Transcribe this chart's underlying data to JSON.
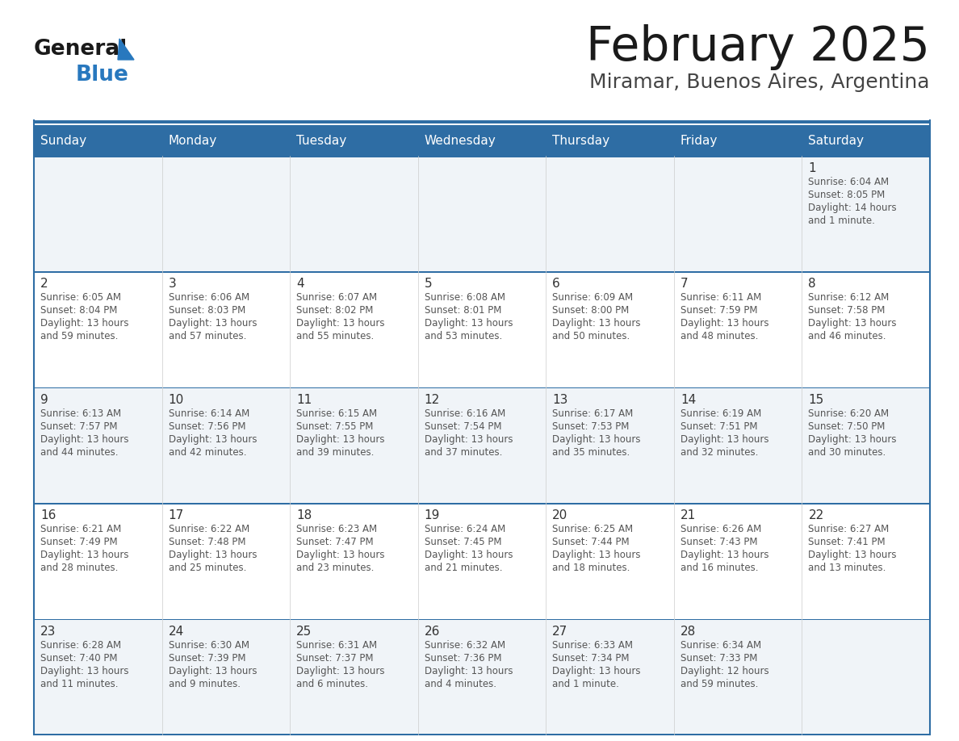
{
  "title": "February 2025",
  "subtitle": "Miramar, Buenos Aires, Argentina",
  "days_of_week": [
    "Sunday",
    "Monday",
    "Tuesday",
    "Wednesday",
    "Thursday",
    "Friday",
    "Saturday"
  ],
  "header_bg": "#2E6DA4",
  "header_text": "#FFFFFF",
  "cell_bg_odd": "#F0F4F8",
  "cell_bg_even": "#FFFFFF",
  "day_num_color": "#333333",
  "text_color": "#555555",
  "border_color": "#2E6DA4",
  "title_color": "#1a1a1a",
  "subtitle_color": "#444444",
  "logo_text_color": "#1a1a1a",
  "logo_blue_color": "#2878BE",
  "calendar": [
    [
      null,
      null,
      null,
      null,
      null,
      null,
      {
        "day": 1,
        "sunrise": "6:04 AM",
        "sunset": "8:05 PM",
        "daylight": "14 hours and 1 minute."
      }
    ],
    [
      {
        "day": 2,
        "sunrise": "6:05 AM",
        "sunset": "8:04 PM",
        "daylight": "13 hours and 59 minutes."
      },
      {
        "day": 3,
        "sunrise": "6:06 AM",
        "sunset": "8:03 PM",
        "daylight": "13 hours and 57 minutes."
      },
      {
        "day": 4,
        "sunrise": "6:07 AM",
        "sunset": "8:02 PM",
        "daylight": "13 hours and 55 minutes."
      },
      {
        "day": 5,
        "sunrise": "6:08 AM",
        "sunset": "8:01 PM",
        "daylight": "13 hours and 53 minutes."
      },
      {
        "day": 6,
        "sunrise": "6:09 AM",
        "sunset": "8:00 PM",
        "daylight": "13 hours and 50 minutes."
      },
      {
        "day": 7,
        "sunrise": "6:11 AM",
        "sunset": "7:59 PM",
        "daylight": "13 hours and 48 minutes."
      },
      {
        "day": 8,
        "sunrise": "6:12 AM",
        "sunset": "7:58 PM",
        "daylight": "13 hours and 46 minutes."
      }
    ],
    [
      {
        "day": 9,
        "sunrise": "6:13 AM",
        "sunset": "7:57 PM",
        "daylight": "13 hours and 44 minutes."
      },
      {
        "day": 10,
        "sunrise": "6:14 AM",
        "sunset": "7:56 PM",
        "daylight": "13 hours and 42 minutes."
      },
      {
        "day": 11,
        "sunrise": "6:15 AM",
        "sunset": "7:55 PM",
        "daylight": "13 hours and 39 minutes."
      },
      {
        "day": 12,
        "sunrise": "6:16 AM",
        "sunset": "7:54 PM",
        "daylight": "13 hours and 37 minutes."
      },
      {
        "day": 13,
        "sunrise": "6:17 AM",
        "sunset": "7:53 PM",
        "daylight": "13 hours and 35 minutes."
      },
      {
        "day": 14,
        "sunrise": "6:19 AM",
        "sunset": "7:51 PM",
        "daylight": "13 hours and 32 minutes."
      },
      {
        "day": 15,
        "sunrise": "6:20 AM",
        "sunset": "7:50 PM",
        "daylight": "13 hours and 30 minutes."
      }
    ],
    [
      {
        "day": 16,
        "sunrise": "6:21 AM",
        "sunset": "7:49 PM",
        "daylight": "13 hours and 28 minutes."
      },
      {
        "day": 17,
        "sunrise": "6:22 AM",
        "sunset": "7:48 PM",
        "daylight": "13 hours and 25 minutes."
      },
      {
        "day": 18,
        "sunrise": "6:23 AM",
        "sunset": "7:47 PM",
        "daylight": "13 hours and 23 minutes."
      },
      {
        "day": 19,
        "sunrise": "6:24 AM",
        "sunset": "7:45 PM",
        "daylight": "13 hours and 21 minutes."
      },
      {
        "day": 20,
        "sunrise": "6:25 AM",
        "sunset": "7:44 PM",
        "daylight": "13 hours and 18 minutes."
      },
      {
        "day": 21,
        "sunrise": "6:26 AM",
        "sunset": "7:43 PM",
        "daylight": "13 hours and 16 minutes."
      },
      {
        "day": 22,
        "sunrise": "6:27 AM",
        "sunset": "7:41 PM",
        "daylight": "13 hours and 13 minutes."
      }
    ],
    [
      {
        "day": 23,
        "sunrise": "6:28 AM",
        "sunset": "7:40 PM",
        "daylight": "13 hours and 11 minutes."
      },
      {
        "day": 24,
        "sunrise": "6:30 AM",
        "sunset": "7:39 PM",
        "daylight": "13 hours and 9 minutes."
      },
      {
        "day": 25,
        "sunrise": "6:31 AM",
        "sunset": "7:37 PM",
        "daylight": "13 hours and 6 minutes."
      },
      {
        "day": 26,
        "sunrise": "6:32 AM",
        "sunset": "7:36 PM",
        "daylight": "13 hours and 4 minutes."
      },
      {
        "day": 27,
        "sunrise": "6:33 AM",
        "sunset": "7:34 PM",
        "daylight": "13 hours and 1 minute."
      },
      {
        "day": 28,
        "sunrise": "6:34 AM",
        "sunset": "7:33 PM",
        "daylight": "12 hours and 59 minutes."
      },
      null
    ]
  ]
}
